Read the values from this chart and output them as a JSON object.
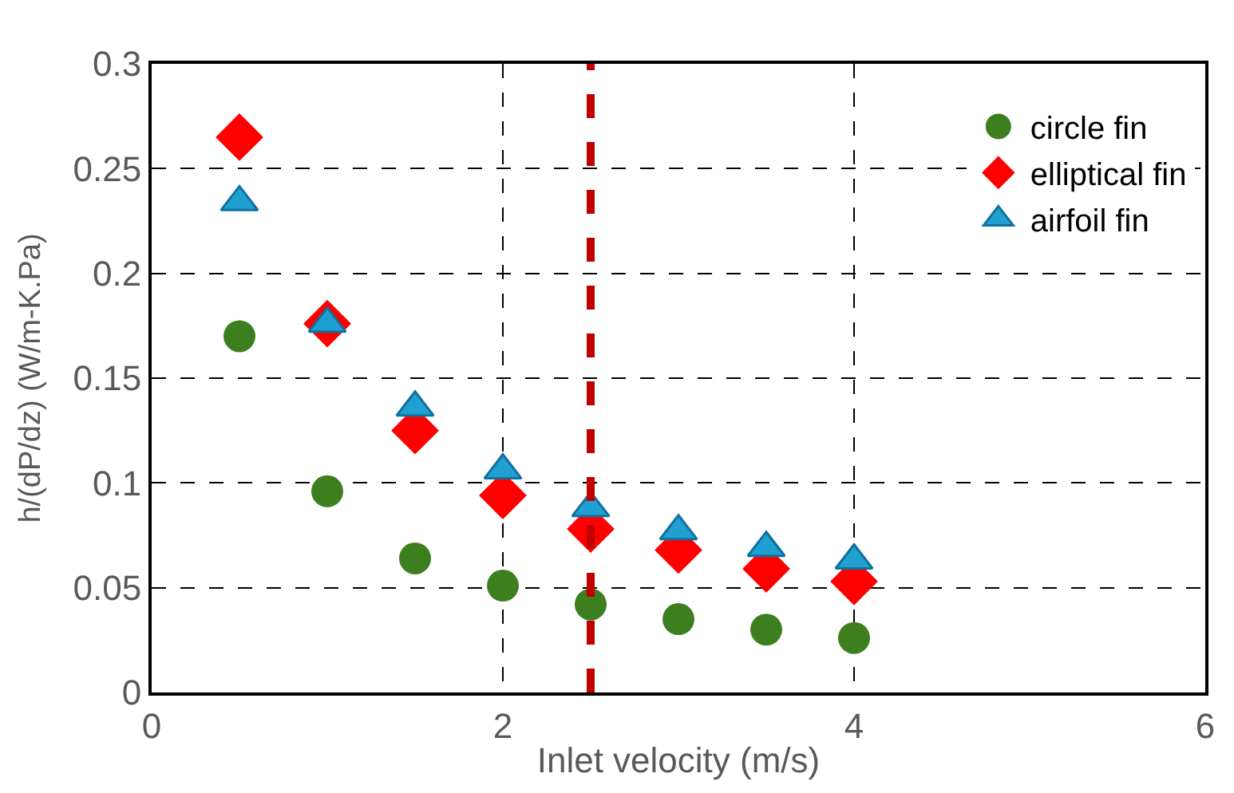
{
  "chart_data": {
    "type": "scatter",
    "xlabel": "Inlet velocity (m/s)",
    "ylabel": "h/(dP/dz) (W/m-K.Pa)",
    "x": [
      0.5,
      1,
      1.5,
      2,
      2.5,
      3,
      3.5,
      4
    ],
    "series": [
      {
        "name": "circle fin",
        "color": "#3d7f1f",
        "marker": "circle",
        "values": [
          0.17,
          0.096,
          0.064,
          0.051,
          0.042,
          0.035,
          0.03,
          0.026
        ]
      },
      {
        "name": "elliptical fin",
        "color": "#ff0000",
        "marker": "diamond",
        "values": [
          0.265,
          0.176,
          0.125,
          0.094,
          0.078,
          0.068,
          0.059,
          0.053
        ]
      },
      {
        "name": "airfoil fin",
        "color": "#1fa0d0",
        "marker": "triangle",
        "values": [
          0.234,
          0.176,
          0.136,
          0.106,
          0.088,
          0.077,
          0.069,
          0.063
        ]
      }
    ],
    "xlim": [
      0,
      6
    ],
    "xticks": [
      0,
      2,
      4,
      6
    ],
    "ylim": [
      0,
      0.3
    ],
    "yticks": [
      0,
      0.05,
      0.1,
      0.15,
      0.2,
      0.25,
      0.3
    ],
    "grid": true,
    "legend": "top right",
    "ref_lines": [
      {
        "axis": "x",
        "value": 2.5,
        "color": "#c00000",
        "line_style": "dashed"
      }
    ]
  }
}
